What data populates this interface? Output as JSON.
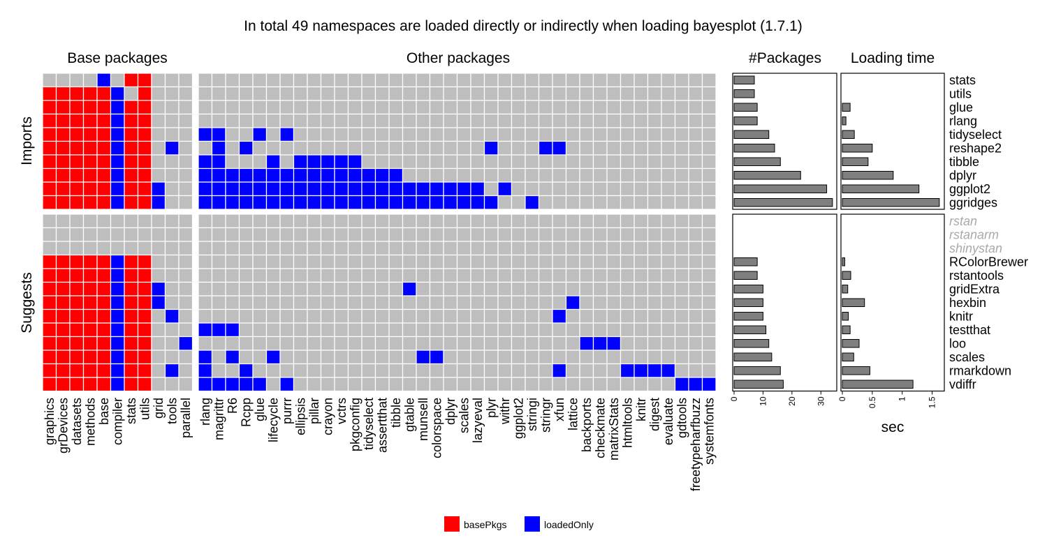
{
  "chart_data": {
    "type": "heatmap",
    "title": "In total 49 namespaces are loaded directly or indirectly when loading bayesplot (1.7.1)",
    "panels": {
      "base": "Base packages",
      "other": "Other packages",
      "count": "#Packages",
      "time": "Loading time"
    },
    "groups": {
      "imports": "Imports",
      "suggests": "Suggests"
    },
    "base_columns": [
      "graphics",
      "grDevices",
      "datasets",
      "methods",
      "base",
      "compiler",
      "stats",
      "utils",
      "grid",
      "tools",
      "parallel"
    ],
    "other_columns": [
      "rlang",
      "magrittr",
      "R6",
      "Rcpp",
      "glue",
      "lifecycle",
      "purrr",
      "ellipsis",
      "pillar",
      "crayon",
      "vctrs",
      "pkgconfig",
      "tidyselect",
      "assertthat",
      "tibble",
      "gtable",
      "munsell",
      "colorspace",
      "dplyr",
      "scales",
      "lazyeval",
      "plyr",
      "withr",
      "ggplot2",
      "stringi",
      "stringr",
      "xfun",
      "lattice",
      "backports",
      "checkmate",
      "matrixStats",
      "htmltools",
      "knitr",
      "digest",
      "evaluate",
      "gdtools",
      "freetypeharfbuzz",
      "systemfonts"
    ],
    "imports_rows": [
      {
        "package": "stats",
        "count": 7,
        "time": 0.0,
        "base": "ffffbfrrggg",
        "other": ""
      },
      {
        "package": "utils",
        "count": 7,
        "time": 0.0,
        "base": "rrrrrbgrggg",
        "other": ""
      },
      {
        "package": "glue",
        "count": 8,
        "time": 0.13,
        "base": "rrrrrbrrggg",
        "other": ""
      },
      {
        "package": "rlang",
        "count": 8,
        "time": 0.06,
        "base": "rrrrrbrrggg",
        "other": ""
      },
      {
        "package": "tidyselect",
        "count": 12,
        "time": 0.2,
        "base": "rrrrrbrrggg",
        "other": "bb..b.b"
      },
      {
        "package": "reshape2",
        "count": 14,
        "time": 0.5,
        "base": "rrrrrbrrgbg",
        "other": ".b.b.................b...bb"
      },
      {
        "package": "tibble",
        "count": 16,
        "time": 0.43,
        "base": "rrrrrbrrggg",
        "other": "bb...b.bbbbb"
      },
      {
        "package": "dplyr",
        "count": 23,
        "time": 0.85,
        "base": "rrrrrbrrggg",
        "other": "bbbbbbbbbbbbbbb"
      },
      {
        "package": "ggplot2",
        "count": 32,
        "time": 1.28,
        "base": "rrrrrbrrbgg",
        "other": "bbbbbbbbbbbbbbbbbbbbb.b"
      },
      {
        "package": "ggridges",
        "count": 34,
        "time": 1.62,
        "base": "rrrrrbrrbgg",
        "other": "bbbbbbbbbbbbbbbbbbbbbb..b"
      }
    ],
    "suggests_rows": [
      {
        "package": "rstan",
        "count": 0,
        "time": 0.0,
        "base": "ggggggggggg",
        "other": "",
        "muted": true
      },
      {
        "package": "rstanarm",
        "count": 0,
        "time": 0.0,
        "base": "ggggggggggg",
        "other": "",
        "muted": true
      },
      {
        "package": "shinystan",
        "count": 0,
        "time": 0.0,
        "base": "ggggggggggg",
        "other": "",
        "muted": true
      },
      {
        "package": "RColorBrewer",
        "count": 8,
        "time": 0.04,
        "base": "rrrrrbrrggg",
        "other": ""
      },
      {
        "package": "rstantools",
        "count": 8,
        "time": 0.14,
        "base": "rrrrrbrrggg",
        "other": ""
      },
      {
        "package": "gridExtra",
        "count": 10,
        "time": 0.09,
        "base": "rrrrrbrrbgg",
        "other": "...............b"
      },
      {
        "package": "hexbin",
        "count": 10,
        "time": 0.37,
        "base": "rrrrrbrrbgg",
        "other": "...........................b"
      },
      {
        "package": "knitr",
        "count": 10,
        "time": 0.1,
        "base": "rrrrrbrrgbg",
        "other": "..........................b"
      },
      {
        "package": "testthat",
        "count": 11,
        "time": 0.13,
        "base": "rrrrrbrrggg",
        "other": "bbb"
      },
      {
        "package": "loo",
        "count": 12,
        "time": 0.28,
        "base": "rrrrrbrrggb",
        "other": "............................bbb"
      },
      {
        "package": "scales",
        "count": 13,
        "time": 0.19,
        "base": "rrrrrbrrggg",
        "other": "b.b..b..........bb"
      },
      {
        "package": "rmarkdown",
        "count": 16,
        "time": 0.46,
        "base": "rrrrrbrrgbg",
        "other": "b..b......................b....bbbb"
      },
      {
        "package": "vdiffr",
        "count": 17,
        "time": 1.18,
        "base": "rrrrrbrrggg",
        "other": "bbbbb.b............................bbb"
      }
    ],
    "count_axis": {
      "min": 0,
      "max": 35,
      "ticks": [
        0,
        10,
        20,
        30
      ]
    },
    "time_axis": {
      "min": 0,
      "max": 1.68,
      "ticks": [
        0,
        0.5,
        1,
        1.5
      ],
      "xlabel": "sec"
    },
    "legend": [
      {
        "label": "basePkgs",
        "color": "#ff0000"
      },
      {
        "label": "loadedOnly",
        "color": "#0000ff"
      }
    ],
    "colors": {
      "base_pkg": "#ff0000",
      "loaded_only": "#0000ff",
      "empty": "#bebebe",
      "bar": "#7f7f7f",
      "muted_label": "#a9a9a9"
    }
  }
}
